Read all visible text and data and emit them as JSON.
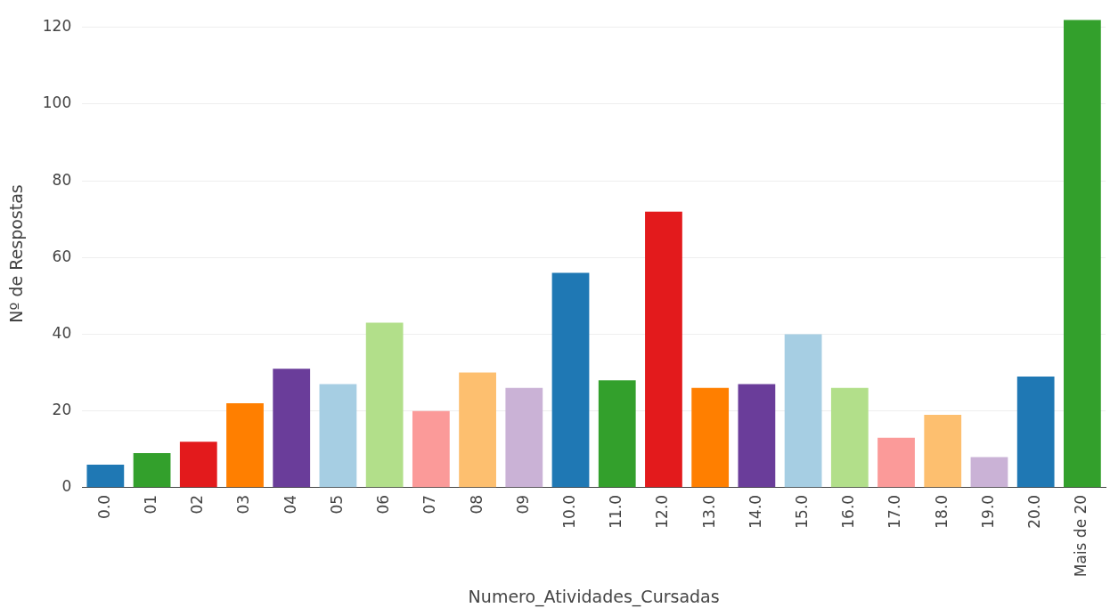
{
  "chart_data": {
    "type": "bar",
    "xlabel": "Numero_Atividades_Cursadas",
    "ylabel": "Nº de Respostas",
    "categories": [
      "0.0",
      "01",
      "02",
      "03",
      "04",
      "05",
      "06",
      "07",
      "08",
      "09",
      "10.0",
      "11.0",
      "12.0",
      "13.0",
      "14.0",
      "15.0",
      "16.0",
      "17.0",
      "18.0",
      "19.0",
      "20.0",
      "Mais de 20"
    ],
    "values": [
      6,
      9,
      12,
      22,
      31,
      27,
      43,
      20,
      30,
      26,
      56,
      28,
      72,
      26,
      27,
      40,
      26,
      13,
      19,
      8,
      29,
      122
    ],
    "colors": [
      "#1f78b4",
      "#33a02c",
      "#e31a1c",
      "#ff7f00",
      "#6a3d9a",
      "#a6cee3",
      "#b2df8a",
      "#fb9a99",
      "#fdbf6f",
      "#cab2d6",
      "#1f78b4",
      "#33a02c",
      "#e31a1c",
      "#ff7f00",
      "#6a3d9a",
      "#a6cee3",
      "#b2df8a",
      "#fb9a99",
      "#fdbf6f",
      "#cab2d6",
      "#1f78b4",
      "#33a02c"
    ],
    "ylim": [
      0,
      122
    ],
    "yticks": [
      0,
      20,
      40,
      60,
      80,
      100,
      120
    ],
    "grid": "y",
    "legend": false
  }
}
